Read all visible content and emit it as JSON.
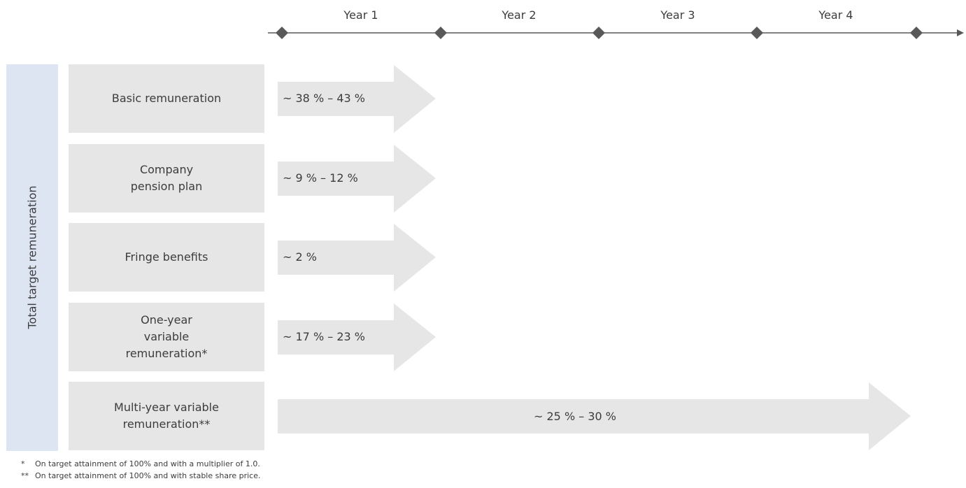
{
  "timeline": {
    "years": [
      "Year 1",
      "Year 2",
      "Year 3",
      "Year 4"
    ]
  },
  "side_label": "Total target remuneration",
  "rows": [
    {
      "label": "Basic remuneration",
      "share": "~ 38 % – 43 %",
      "duration_years": 1
    },
    {
      "label": "Company pension plan",
      "share": "~ 9 % – 12 %",
      "duration_years": 1
    },
    {
      "label": "Fringe benefits",
      "share": "~ 2 %",
      "duration_years": 1
    },
    {
      "label": "One-year variable remuneration*",
      "share": "~ 17 % – 23 %",
      "duration_years": 1
    },
    {
      "label": "Multi-year variable remuneration**",
      "share": "~ 25 % – 30 %",
      "duration_years": 4
    }
  ],
  "footnotes": [
    {
      "mark": "*",
      "text": "On target attainment of 100% and with a multiplier of 1.0."
    },
    {
      "mark": "**",
      "text": "On target attainment of 100% and with stable share price."
    }
  ],
  "colors": {
    "timeline": "#595959",
    "arrow_fill": "#e6e6e7",
    "label_box": "#e6e6e7",
    "side_panel": "#dde5f3"
  }
}
